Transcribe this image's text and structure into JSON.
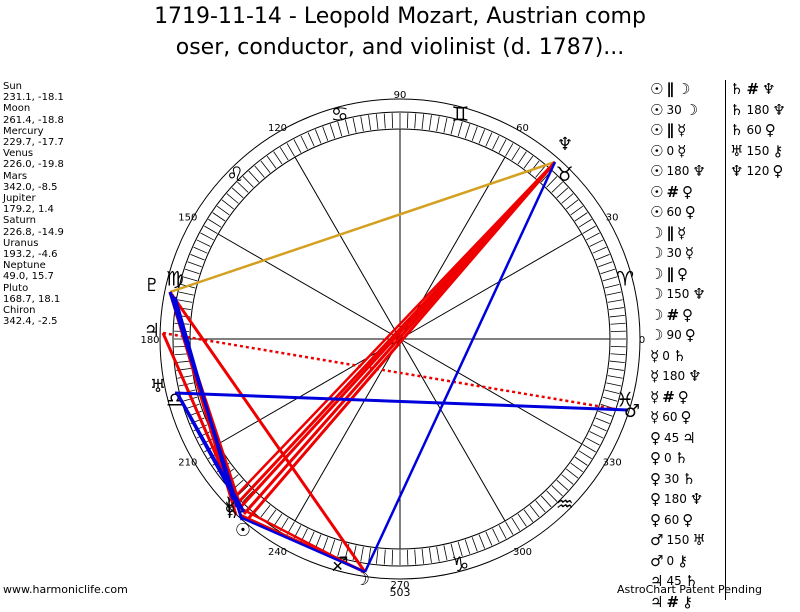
{
  "title_line1": "1719-11-14 - Leopold Mozart, Austrian comp",
  "title_line2": "oser, conductor, and violinist (d. 1787)...",
  "planets": [
    {
      "name": "Sun",
      "pos": "231.1, -18.1"
    },
    {
      "name": "Moon",
      "pos": "261.4, -18.8"
    },
    {
      "name": "Mercury",
      "pos": "229.7, -17.7"
    },
    {
      "name": "Venus",
      "pos": "226.0, -19.8"
    },
    {
      "name": "Mars",
      "pos": "342.0, -8.5"
    },
    {
      "name": "Jupiter",
      "pos": "179.2, 1.4"
    },
    {
      "name": "Saturn",
      "pos": "226.8, -14.9"
    },
    {
      "name": "Uranus",
      "pos": "193.2, -4.6"
    },
    {
      "name": "Neptune",
      "pos": "49.0, 15.7"
    },
    {
      "name": "Pluto",
      "pos": "168.7, 18.1"
    },
    {
      "name": "Chiron",
      "pos": "342.4, -2.5"
    }
  ],
  "wheel": {
    "degree_labels": [
      "0",
      "30",
      "60",
      "90",
      "120",
      "150",
      "180",
      "210",
      "240",
      "270",
      "300",
      "330"
    ],
    "extra_label": "503",
    "zodiac_glyphs": [
      "♈",
      "♉",
      "♊",
      "♋",
      "♌",
      "♍",
      "♎",
      "♏",
      "♐",
      "♑",
      "♒",
      "♓"
    ],
    "planet_glyphs": {
      "sun": "☉",
      "moon": "☽",
      "mercury": "☿",
      "venus": "♀",
      "mars": "♂",
      "jupiter": "♃",
      "saturn": "♄",
      "uranus": "♅",
      "neptune": "♆",
      "pluto": "♇",
      "chiron": "⚷"
    },
    "colors": {
      "red": "#ee0000",
      "blue": "#0000dd",
      "gold": "#d4a020",
      "ring": "#000000"
    }
  },
  "aspects_col1": [
    [
      "☉",
      "∥",
      "☽"
    ],
    [
      "☉",
      "30",
      "☽"
    ],
    [
      "☉",
      "∥",
      "☿"
    ],
    [
      "☉",
      "0",
      "☿"
    ],
    [
      "☉",
      "180",
      "♆"
    ],
    [
      "☉",
      "#",
      "♀"
    ],
    [
      "☉",
      "60",
      "♀"
    ],
    [
      "☽",
      "∥",
      "☿"
    ],
    [
      "☽",
      "30",
      "☿"
    ],
    [
      "☽",
      "∥",
      "♀"
    ],
    [
      "☽",
      "150",
      "♆"
    ],
    [
      "☽",
      "#",
      "♀"
    ],
    [
      "☽",
      "90",
      "♀"
    ],
    [
      "☿",
      "0",
      "♄"
    ],
    [
      "☿",
      "180",
      "♆"
    ],
    [
      "☿",
      "#",
      "♀"
    ],
    [
      "☿",
      "60",
      "♀"
    ],
    [
      "♀",
      "45",
      "♃"
    ],
    [
      "♀",
      "0",
      "♄"
    ],
    [
      "♀",
      "30",
      "♄"
    ],
    [
      "♀",
      "180",
      "♆"
    ],
    [
      "♀",
      "60",
      "♀"
    ],
    [
      "♂",
      "150",
      "♅"
    ],
    [
      "♂",
      "0",
      "⚷"
    ],
    [
      "♃",
      "45",
      "♄"
    ],
    [
      "♃",
      "#",
      "⚷"
    ]
  ],
  "aspects_col2": [
    [
      "♄",
      "#",
      "♆"
    ],
    [
      "♄",
      "180",
      "♆"
    ],
    [
      "♄",
      "60",
      "♀"
    ],
    [
      "♅",
      "150",
      "⚷"
    ],
    [
      "♆",
      "120",
      "♀"
    ]
  ],
  "footer_left": "www.harmoniclife.com",
  "footer_right": "AstroChart Patent Pending"
}
